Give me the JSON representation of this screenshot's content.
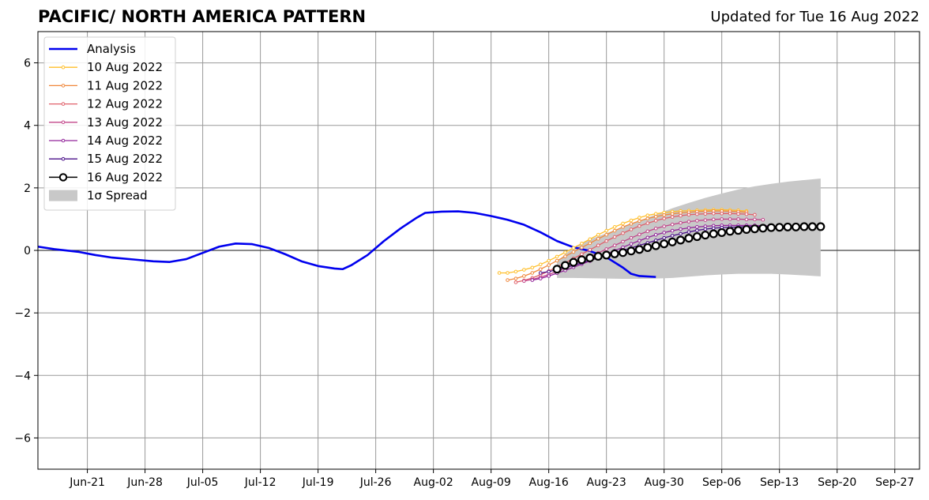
{
  "chart_data": {
    "type": "line",
    "title": "PACIFIC/ NORTH AMERICA PATTERN",
    "subtitle": "Updated for Tue 16 Aug 2022",
    "xlabel": "",
    "ylabel": "",
    "xlim": [
      "2022-06-15",
      "2022-09-30"
    ],
    "ylim": [
      -7,
      7
    ],
    "grid": true,
    "legend_position": "upper-left",
    "x_ticks": [
      "2022-06-21",
      "2022-06-28",
      "2022-07-05",
      "2022-07-12",
      "2022-07-19",
      "2022-07-26",
      "2022-08-02",
      "2022-08-09",
      "2022-08-16",
      "2022-08-23",
      "2022-08-30",
      "2022-09-06",
      "2022-09-13",
      "2022-09-20",
      "2022-09-27"
    ],
    "x_tick_labels": [
      "Jun-21",
      "Jun-28",
      "Jul-05",
      "Jul-12",
      "Jul-19",
      "Jul-26",
      "Aug-02",
      "Aug-09",
      "Aug-16",
      "Aug-23",
      "Aug-30",
      "Sep-06",
      "Sep-13",
      "Sep-20",
      "Sep-27"
    ],
    "y_ticks": [
      -6,
      -4,
      -2,
      0,
      2,
      4,
      6
    ],
    "y_tick_labels": [
      "−6",
      "−4",
      "−2",
      "0",
      "2",
      "4",
      "6"
    ],
    "legend": [
      "Analysis",
      "10 Aug 2022",
      "11 Aug 2022",
      "12 Aug 2022",
      "13 Aug 2022",
      "14 Aug 2022",
      "15 Aug 2022",
      "16 Aug 2022",
      "1σ Spread"
    ],
    "analysis": {
      "name": "Analysis",
      "color": "#0000ee",
      "points": [
        [
          "2022-06-15",
          0.12
        ],
        [
          "2022-06-17",
          0.04
        ],
        [
          "2022-06-20",
          -0.05
        ],
        [
          "2022-06-22",
          -0.15
        ],
        [
          "2022-06-24",
          -0.23
        ],
        [
          "2022-06-27",
          -0.3
        ],
        [
          "2022-06-29",
          -0.35
        ],
        [
          "2022-07-01",
          -0.37
        ],
        [
          "2022-07-03",
          -0.28
        ],
        [
          "2022-07-05",
          -0.08
        ],
        [
          "2022-07-07",
          0.12
        ],
        [
          "2022-07-09",
          0.22
        ],
        [
          "2022-07-11",
          0.2
        ],
        [
          "2022-07-13",
          0.08
        ],
        [
          "2022-07-15",
          -0.12
        ],
        [
          "2022-07-17",
          -0.35
        ],
        [
          "2022-07-19",
          -0.5
        ],
        [
          "2022-07-21",
          -0.58
        ],
        [
          "2022-07-22",
          -0.6
        ],
        [
          "2022-07-23",
          -0.48
        ],
        [
          "2022-07-25",
          -0.15
        ],
        [
          "2022-07-27",
          0.3
        ],
        [
          "2022-07-29",
          0.7
        ],
        [
          "2022-07-31",
          1.05
        ],
        [
          "2022-08-01",
          1.2
        ],
        [
          "2022-08-03",
          1.24
        ],
        [
          "2022-08-05",
          1.25
        ],
        [
          "2022-08-07",
          1.2
        ],
        [
          "2022-08-09",
          1.1
        ],
        [
          "2022-08-11",
          0.98
        ],
        [
          "2022-08-13",
          0.82
        ],
        [
          "2022-08-15",
          0.58
        ],
        [
          "2022-08-17",
          0.3
        ],
        [
          "2022-08-19",
          0.1
        ],
        [
          "2022-08-21",
          -0.02
        ],
        [
          "2022-08-23",
          -0.22
        ],
        [
          "2022-08-25",
          -0.55
        ],
        [
          "2022-08-26",
          -0.75
        ],
        [
          "2022-08-27",
          -0.82
        ],
        [
          "2022-08-29",
          -0.85
        ]
      ]
    },
    "forecasts": [
      {
        "name": "10 Aug 2022",
        "color": "#ffbf2a",
        "start": "2022-08-10",
        "values": [
          -0.72,
          -0.72,
          -0.68,
          -0.62,
          -0.55,
          -0.45,
          -0.33,
          -0.2,
          -0.06,
          0.08,
          0.22,
          0.36,
          0.5,
          0.63,
          0.75,
          0.86,
          0.96,
          1.05,
          1.12,
          1.17,
          1.21,
          1.24,
          1.26,
          1.27,
          1.28,
          1.29,
          1.3,
          1.3,
          1.29,
          1.28,
          1.26
        ]
      },
      {
        "name": "11 Aug 2022",
        "color": "#f0883c",
        "start": "2022-08-11",
        "values": [
          -0.95,
          -0.9,
          -0.82,
          -0.72,
          -0.6,
          -0.47,
          -0.33,
          -0.19,
          -0.05,
          0.09,
          0.23,
          0.37,
          0.5,
          0.63,
          0.75,
          0.85,
          0.94,
          1.02,
          1.08,
          1.13,
          1.17,
          1.2,
          1.22,
          1.24,
          1.25,
          1.26,
          1.26,
          1.25,
          1.24,
          1.22
        ]
      },
      {
        "name": "12 Aug 2022",
        "color": "#e0606a",
        "start": "2022-08-12",
        "values": [
          -1.02,
          -0.96,
          -0.88,
          -0.78,
          -0.66,
          -0.53,
          -0.4,
          -0.26,
          -0.12,
          0.02,
          0.16,
          0.3,
          0.43,
          0.55,
          0.67,
          0.78,
          0.87,
          0.95,
          1.02,
          1.07,
          1.11,
          1.14,
          1.16,
          1.17,
          1.18,
          1.18,
          1.18,
          1.17,
          1.16,
          1.14
        ]
      },
      {
        "name": "13 Aug 2022",
        "color": "#c2448a",
        "start": "2022-08-13",
        "values": [
          -0.98,
          -0.93,
          -0.86,
          -0.77,
          -0.67,
          -0.56,
          -0.44,
          -0.32,
          -0.2,
          -0.08,
          0.04,
          0.16,
          0.28,
          0.4,
          0.51,
          0.61,
          0.7,
          0.77,
          0.83,
          0.88,
          0.92,
          0.95,
          0.97,
          0.99,
          1.0,
          1.0,
          1.0,
          0.99,
          0.99,
          0.98
        ]
      },
      {
        "name": "14 Aug 2022",
        "color": "#92249a",
        "start": "2022-08-14",
        "values": [
          -0.95,
          -0.9,
          -0.82,
          -0.73,
          -0.64,
          -0.54,
          -0.44,
          -0.34,
          -0.23,
          -0.12,
          -0.01,
          0.1,
          0.21,
          0.31,
          0.41,
          0.5,
          0.57,
          0.63,
          0.68,
          0.72,
          0.75,
          0.77,
          0.79,
          0.8,
          0.8,
          0.8,
          0.8,
          0.8,
          0.79,
          0.78
        ]
      },
      {
        "name": "15 Aug 2022",
        "color": "#4a0f8a",
        "start": "2022-08-15",
        "values": [
          -0.72,
          -0.68,
          -0.62,
          -0.55,
          -0.48,
          -0.4,
          -0.32,
          -0.24,
          -0.16,
          -0.08,
          0.0,
          0.08,
          0.16,
          0.24,
          0.32,
          0.4,
          0.47,
          0.53,
          0.59,
          0.64,
          0.68,
          0.71,
          0.73,
          0.74,
          0.75,
          0.76,
          0.76,
          0.76,
          0.76,
          0.75
        ]
      }
    ],
    "latest": {
      "name": "16 Aug 2022",
      "color": "#000000",
      "start": "2022-08-17",
      "values": [
        -0.6,
        -0.48,
        -0.38,
        -0.3,
        -0.24,
        -0.19,
        -0.15,
        -0.11,
        -0.07,
        -0.02,
        0.03,
        0.09,
        0.15,
        0.21,
        0.27,
        0.33,
        0.39,
        0.44,
        0.49,
        0.53,
        0.57,
        0.61,
        0.64,
        0.67,
        0.69,
        0.71,
        0.73,
        0.74,
        0.75,
        0.75,
        0.76,
        0.76,
        0.76
      ]
    },
    "spread": {
      "name": "1σ Spread",
      "color": "#c8c8c8",
      "x": [
        "2022-08-17",
        "2022-08-19",
        "2022-08-21",
        "2022-08-23",
        "2022-08-25",
        "2022-08-27",
        "2022-08-29",
        "2022-08-31",
        "2022-09-02",
        "2022-09-04",
        "2022-09-06",
        "2022-09-08",
        "2022-09-10",
        "2022-09-12",
        "2022-09-14",
        "2022-09-16",
        "2022-09-18"
      ],
      "upper": [
        -0.35,
        0.1,
        0.35,
        0.55,
        0.75,
        0.95,
        1.15,
        1.35,
        1.52,
        1.68,
        1.82,
        1.95,
        2.05,
        2.13,
        2.2,
        2.25,
        2.3
      ],
      "lower": [
        -0.88,
        -0.88,
        -0.89,
        -0.9,
        -0.91,
        -0.91,
        -0.9,
        -0.88,
        -0.84,
        -0.8,
        -0.77,
        -0.75,
        -0.75,
        -0.75,
        -0.77,
        -0.8,
        -0.83
      ]
    }
  }
}
